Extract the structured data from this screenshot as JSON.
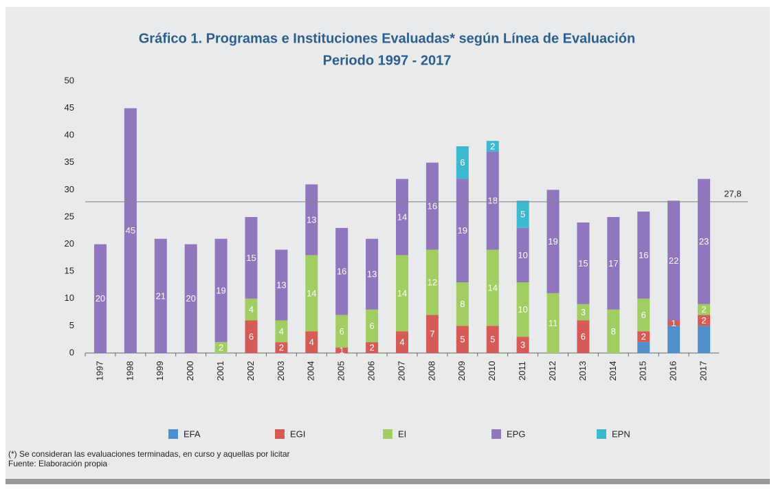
{
  "chart_data": {
    "type": "stacked_bar",
    "title": [
      "Gráfico 1. Programas e Instituciones Evaluadas* según Línea de Evaluación",
      "Periodo 1997 - 2017"
    ],
    "categories": [
      "1997",
      "1998",
      "1999",
      "2000",
      "2001",
      "2002",
      "2003",
      "2004",
      "2005",
      "2006",
      "2007",
      "2008",
      "2009",
      "2010",
      "2011",
      "2012",
      "2013",
      "2014",
      "2015",
      "2016",
      "2017"
    ],
    "series": [
      {
        "name": "EFA",
        "color": "#4f8fcc",
        "show_labels": false,
        "values": [
          null,
          null,
          null,
          null,
          null,
          null,
          null,
          null,
          null,
          null,
          null,
          null,
          null,
          null,
          null,
          null,
          null,
          null,
          2,
          5,
          5
        ]
      },
      {
        "name": "EGI",
        "color": "#d65b57",
        "values": [
          null,
          null,
          null,
          null,
          null,
          6,
          2,
          4,
          1,
          2,
          4,
          7,
          5,
          5,
          3,
          null,
          6,
          null,
          2,
          1,
          2
        ]
      },
      {
        "name": "EI",
        "color": "#a1cd62",
        "values": [
          null,
          null,
          null,
          null,
          2,
          4,
          4,
          14,
          6,
          6,
          14,
          12,
          8,
          14,
          10,
          11,
          3,
          8,
          6,
          null,
          2
        ]
      },
      {
        "name": "EPG",
        "color": "#8f76bd",
        "values": [
          20,
          45,
          21,
          20,
          19,
          15,
          13,
          13,
          16,
          13,
          14,
          16,
          19,
          18,
          10,
          19,
          15,
          17,
          16,
          22,
          23
        ]
      },
      {
        "name": "EPN",
        "color": "#3eb8cf",
        "values": [
          null,
          null,
          null,
          null,
          null,
          null,
          null,
          null,
          null,
          null,
          null,
          null,
          6,
          2,
          5,
          null,
          null,
          null,
          null,
          null,
          null
        ]
      }
    ],
    "ylim": [
      0,
      50
    ],
    "yticks": [
      0,
      5,
      10,
      15,
      20,
      25,
      30,
      35,
      40,
      45,
      50
    ],
    "reference_line": {
      "value": 27.8,
      "label": "27,8"
    },
    "notes": [
      "(*) Se consideran las evaluaciones terminadas, en curso y aquellas por licitar",
      "Fuente: Elaboración propia"
    ]
  }
}
